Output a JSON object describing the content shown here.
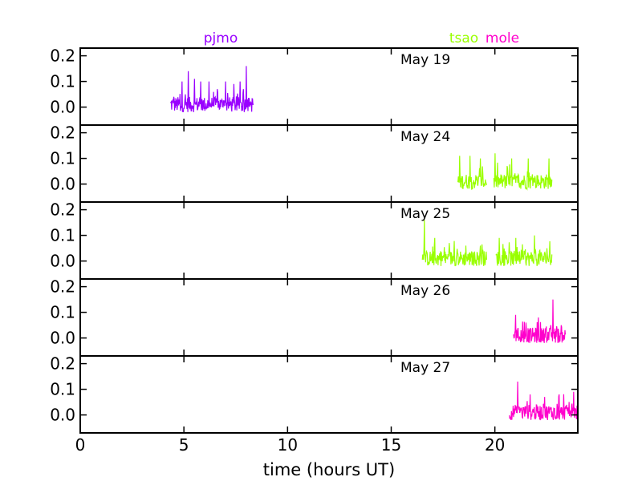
{
  "chart_data": {
    "type": "line",
    "xlabel": "time (hours UT)",
    "xlim": [
      0,
      24
    ],
    "x_ticks": [
      "0",
      "5",
      "10",
      "15",
      "20"
    ],
    "ylim": [
      -0.07,
      0.23
    ],
    "y_ticks": [
      "0.0",
      "0.1",
      "0.2"
    ],
    "grid": false,
    "observers": [
      {
        "name": "pjmo",
        "color": "#9900ff"
      },
      {
        "name": "tsao",
        "color": "#99ff00"
      },
      {
        "name": "mole",
        "color": "#ff00cc"
      }
    ],
    "panels": [
      {
        "label": "May 19",
        "series": [
          {
            "observer": "pjmo",
            "color": "#9900ff",
            "x_start": 4.35,
            "x_end": 8.35,
            "peaks": [
              [
                4.5,
                0.04
              ],
              [
                4.9,
                0.1
              ],
              [
                5.2,
                0.14
              ],
              [
                5.5,
                0.11
              ],
              [
                5.8,
                0.1
              ],
              [
                6.2,
                0.1
              ],
              [
                6.6,
                0.07
              ],
              [
                7.0,
                0.1
              ],
              [
                7.4,
                0.09
              ],
              [
                7.7,
                0.1
              ],
              [
                8.0,
                0.16
              ]
            ]
          }
        ]
      },
      {
        "label": "May 24",
        "series": [
          {
            "observer": "tsao",
            "color": "#99ff00",
            "x_start": 18.2,
            "x_end": 19.6,
            "peaks": [
              [
                18.3,
                0.11
              ],
              [
                18.8,
                0.11
              ],
              [
                19.3,
                0.1
              ]
            ]
          },
          {
            "observer": "tsao",
            "color": "#99ff00",
            "x_start": 19.95,
            "x_end": 22.75,
            "peaks": [
              [
                20.0,
                0.12
              ],
              [
                20.8,
                0.1
              ],
              [
                21.6,
                0.1
              ],
              [
                22.6,
                0.1
              ]
            ]
          }
        ]
      },
      {
        "label": "May 25",
        "series": [
          {
            "observer": "tsao",
            "color": "#99ff00",
            "x_start": 16.5,
            "x_end": 19.6,
            "peaks": [
              [
                16.6,
                0.16
              ],
              [
                17.1,
                0.09
              ],
              [
                17.8,
                0.07
              ],
              [
                18.6,
                0.06
              ],
              [
                19.3,
                0.06
              ]
            ]
          },
          {
            "observer": "tsao",
            "color": "#99ff00",
            "x_start": 20.05,
            "x_end": 22.75,
            "peaks": [
              [
                20.2,
                0.09
              ],
              [
                21.0,
                0.09
              ],
              [
                21.9,
                0.1
              ],
              [
                22.5,
                0.05
              ]
            ]
          }
        ]
      },
      {
        "label": "May 26",
        "series": [
          {
            "observer": "mole",
            "color": "#ff00cc",
            "x_start": 20.9,
            "x_end": 23.4,
            "peaks": [
              [
                21.0,
                0.09
              ],
              [
                21.5,
                0.06
              ],
              [
                22.1,
                0.08
              ],
              [
                22.8,
                0.15
              ],
              [
                23.2,
                0.05
              ]
            ]
          }
        ]
      },
      {
        "label": "May 27",
        "series": [
          {
            "observer": "mole",
            "color": "#ff00cc",
            "x_start": 20.7,
            "x_end": 24.0,
            "peaks": [
              [
                21.1,
                0.13
              ],
              [
                21.7,
                0.08
              ],
              [
                22.4,
                0.07
              ],
              [
                23.1,
                0.08
              ],
              [
                23.8,
                0.09
              ]
            ]
          }
        ]
      }
    ]
  }
}
